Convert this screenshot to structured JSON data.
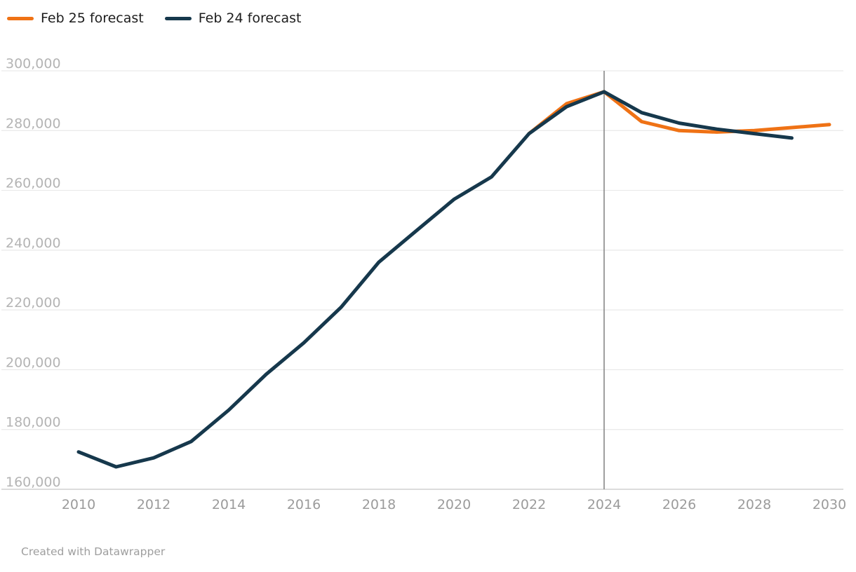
{
  "legend": {
    "items": [
      {
        "label": "Feb 25 forecast",
        "color": "#ef7215"
      },
      {
        "label": "Feb 24 forecast",
        "color": "#16384c"
      }
    ]
  },
  "footer": {
    "credit": "Created with Datawrapper"
  },
  "colors": {
    "gridline": "#e9e9e9",
    "baseline": "#d0d0d0",
    "marker_line": "#878787",
    "y_tick_label": "#b4b4b4",
    "x_tick_label": "#9b9b9b"
  },
  "chart_data": {
    "type": "line",
    "grid": true,
    "legend_position": "top-left",
    "x_axis": {
      "min": 2010,
      "max": 2030,
      "ticks": [
        2010,
        2012,
        2014,
        2016,
        2018,
        2020,
        2022,
        2024,
        2026,
        2028,
        2030
      ],
      "tick_labels": [
        "2010",
        "2012",
        "2014",
        "2016",
        "2018",
        "2020",
        "2022",
        "2024",
        "2026",
        "2028",
        "2030"
      ]
    },
    "y_axis": {
      "min": 160000,
      "max": 300000,
      "step": 20000,
      "ticks": [
        160000,
        180000,
        200000,
        220000,
        240000,
        260000,
        280000,
        300000
      ],
      "tick_labels": [
        "160,000",
        "180,000",
        "200,000",
        "220,000",
        "240,000",
        "260,000",
        "280,000",
        "300,000"
      ]
    },
    "marker": {
      "x": 2024
    },
    "series": [
      {
        "name": "Feb 25 forecast",
        "color": "#ef7215",
        "x": [
          2022,
          2023,
          2024,
          2025,
          2026,
          2027,
          2028,
          2029,
          2030
        ],
        "values": [
          279000,
          289000,
          293000,
          283000,
          280000,
          279500,
          280000,
          281000,
          282000
        ]
      },
      {
        "name": "Feb 24 forecast",
        "color": "#16384c",
        "x": [
          2010,
          2011,
          2012,
          2013,
          2014,
          2015,
          2016,
          2017,
          2018,
          2019,
          2020,
          2021,
          2022,
          2023,
          2024,
          2025,
          2026,
          2027,
          2028,
          2029
        ],
        "values": [
          172500,
          167500,
          170500,
          176000,
          186500,
          198500,
          209000,
          221000,
          236000,
          246500,
          257000,
          264500,
          279000,
          288000,
          293000,
          286000,
          282500,
          280500,
          279000,
          277500
        ]
      }
    ]
  }
}
